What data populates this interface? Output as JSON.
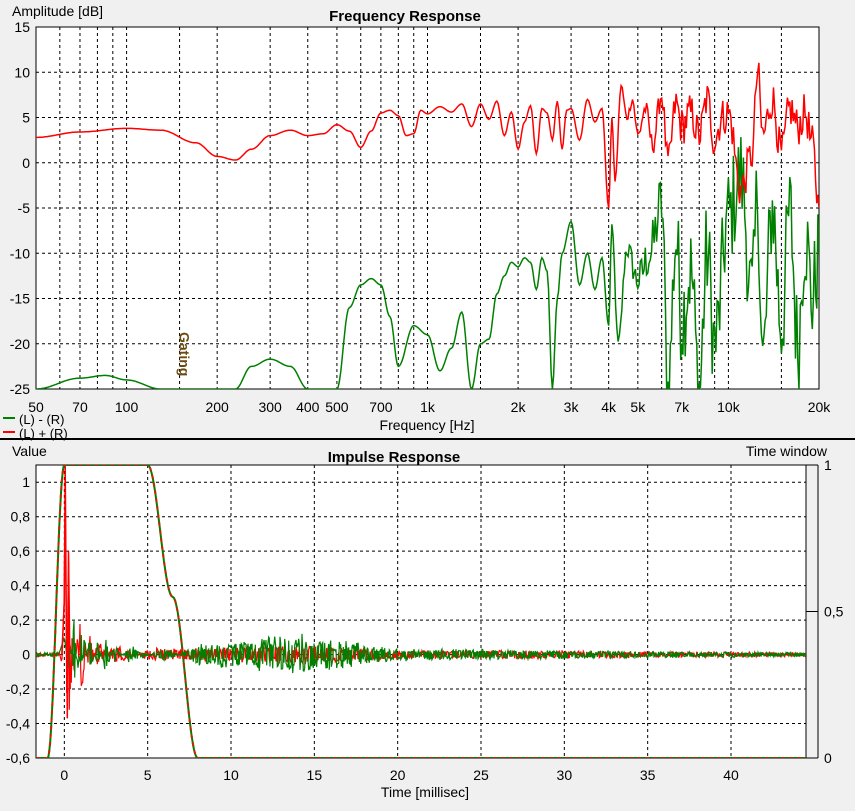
{
  "chart_data": [
    {
      "type": "line",
      "title": "Frequency Response",
      "ylabel": "Amplitude [dB]",
      "xlabel": "Frequency [Hz]",
      "xscale": "log",
      "xlim": [
        50,
        20000
      ],
      "ylim": [
        -25,
        15
      ],
      "grid": true,
      "yticks": [
        15,
        10,
        5,
        0,
        -5,
        -10,
        -15,
        -20,
        -25
      ],
      "xticks": [
        {
          "v": 50,
          "label": "50"
        },
        {
          "v": 70,
          "label": "70"
        },
        {
          "v": 100,
          "label": "100"
        },
        {
          "v": 200,
          "label": "200"
        },
        {
          "v": 300,
          "label": "300"
        },
        {
          "v": 400,
          "label": "400"
        },
        {
          "v": 500,
          "label": "500"
        },
        {
          "v": 700,
          "label": "700"
        },
        {
          "v": 1000,
          "label": "1k"
        },
        {
          "v": 2000,
          "label": "2k"
        },
        {
          "v": 3000,
          "label": "3k"
        },
        {
          "v": 4000,
          "label": "4k"
        },
        {
          "v": 5000,
          "label": "5k"
        },
        {
          "v": 7000,
          "label": "7k"
        },
        {
          "v": 10000,
          "label": "10k"
        },
        {
          "v": 20000,
          "label": "20k"
        }
      ],
      "annotation": "Gating",
      "annotation_x": 150,
      "legend_position": "bottom-left",
      "series": [
        {
          "name": "(L) + (R)",
          "color": "#ff0000",
          "x": [
            50,
            70,
            100,
            130,
            170,
            200,
            230,
            260,
            300,
            350,
            400,
            450,
            500,
            550,
            600,
            650,
            700,
            750,
            800,
            850,
            900,
            950,
            1000,
            1100,
            1200,
            1300,
            1400,
            1500,
            1600,
            1700,
            1800,
            1900,
            2000,
            2100,
            2200,
            2300,
            2400,
            2500,
            2600,
            2700,
            2800,
            2900,
            3000,
            3200,
            3400,
            3600,
            3800,
            4000,
            4100,
            4200,
            4400,
            4600,
            4800,
            5000,
            5300,
            5600,
            6000,
            6300,
            6700,
            7000,
            7500,
            8000,
            8500,
            9000,
            9500,
            10000,
            11000,
            12000,
            12500,
            13000,
            14000,
            15000,
            16000,
            17000,
            18000,
            19000,
            20000
          ],
          "y": [
            2.8,
            3.4,
            3.8,
            3.6,
            2.2,
            0.7,
            0.3,
            1.5,
            3.0,
            3.6,
            3.0,
            3.2,
            4.2,
            3.5,
            1.7,
            3.5,
            5.5,
            5.8,
            5.2,
            3.0,
            3.2,
            5.8,
            5.4,
            6.2,
            5.6,
            6.5,
            4.0,
            6.5,
            4.8,
            6.8,
            3.0,
            5.6,
            1.5,
            4.5,
            6.3,
            1.0,
            6.0,
            5.5,
            2.5,
            6.8,
            1.5,
            5.8,
            6.0,
            2.5,
            7.0,
            4.5,
            6.0,
            -5.0,
            5.0,
            -2.0,
            8.5,
            5.0,
            7.0,
            3.0,
            6.0,
            2.0,
            7.5,
            0.0,
            6.5,
            4.0,
            5.5,
            3.0,
            7.0,
            2.5,
            5.0,
            5.5,
            -3.0,
            1.0,
            10.0,
            3.0,
            7.0,
            1.0,
            6.0,
            4.0,
            5.5,
            2.0,
            -5.0
          ]
        },
        {
          "name": "(L) - (R)",
          "color": "#008000",
          "x": [
            50,
            70,
            85,
            100,
            130,
            170,
            230,
            260,
            300,
            350,
            400,
            500,
            550,
            600,
            650,
            700,
            750,
            800,
            900,
            1000,
            1100,
            1200,
            1300,
            1400,
            1500,
            1600,
            1700,
            1800,
            1900,
            2000,
            2100,
            2200,
            2300,
            2400,
            2500,
            2600,
            2700,
            2800,
            3000,
            3200,
            3400,
            3600,
            3800,
            4000,
            4100,
            4300,
            4600,
            5000,
            5500,
            6000,
            6300,
            6700,
            7000,
            7500,
            8000,
            8500,
            9000,
            10000,
            11000,
            12000,
            12500,
            13000,
            14000,
            15000,
            16000,
            17000,
            18000,
            19000,
            20000
          ],
          "y": [
            -25.0,
            -23.8,
            -23.5,
            -24.0,
            -25.0,
            -25.0,
            -25.0,
            -22.5,
            -21.7,
            -22.5,
            -25.0,
            -25.0,
            -16.0,
            -13.5,
            -12.8,
            -13.5,
            -17.0,
            -22.5,
            -18.0,
            -19.0,
            -23.0,
            -20.5,
            -16.5,
            -25.0,
            -20.0,
            -19.5,
            -14.5,
            -12.5,
            -11.0,
            -11.5,
            -10.5,
            -11.0,
            -14.0,
            -10.5,
            -12.0,
            -25.0,
            -15.0,
            -10.0,
            -6.5,
            -13.5,
            -10.0,
            -14.0,
            -10.5,
            -18.0,
            -7.0,
            -20.0,
            -9.5,
            -13.0,
            -10.0,
            -4.5,
            -25.0,
            -8.5,
            -17.0,
            -12.0,
            -25.0,
            -10.0,
            -20.0,
            -6.0,
            -1.5,
            -15.0,
            -3.5,
            -22.0,
            -5.0,
            -18.0,
            -5.5,
            -20.0,
            -8.0,
            -15.0,
            -10.0
          ]
        }
      ]
    },
    {
      "type": "line",
      "title": "Impulse Response",
      "ylabel": "Value",
      "ylabel_right": "Time window",
      "xlabel": "Time [millisec]",
      "xlim": [
        -1.7,
        44.5
      ],
      "ylim": [
        -0.6,
        1.1
      ],
      "grid": true,
      "xticks": [
        0,
        5,
        10,
        15,
        20,
        25,
        30,
        35,
        40
      ],
      "yticks": [
        {
          "v": 1,
          "label": "1"
        },
        {
          "v": 0.8,
          "label": "0,8"
        },
        {
          "v": 0.6,
          "label": "0,6"
        },
        {
          "v": 0.4,
          "label": "0,4"
        },
        {
          "v": 0.2,
          "label": "0,2"
        },
        {
          "v": 0,
          "label": "0"
        },
        {
          "v": -0.2,
          "label": "-0,2"
        },
        {
          "v": -0.4,
          "label": "-0,4"
        },
        {
          "v": -0.6,
          "label": "-0,6"
        }
      ],
      "y2lim": [
        0,
        1
      ],
      "y2ticks": [
        {
          "v": 0,
          "label": "0"
        },
        {
          "v": 0.5,
          "label": "0,5"
        },
        {
          "v": 1,
          "label": "1"
        }
      ],
      "window": {
        "name": "Time window",
        "colors": [
          "#008000",
          "#cc2200"
        ],
        "x": [
          -1.7,
          -1.0,
          0.0,
          5.0,
          6.5,
          8.0,
          44.5
        ],
        "y": [
          0,
          0,
          1,
          1,
          0.55,
          0,
          0
        ]
      },
      "series": [
        {
          "name": "(L) + (R)",
          "color": "#ff0000",
          "x": [
            -1.7,
            -0.3,
            -0.15,
            0.0,
            0.05,
            0.15,
            0.25,
            0.4,
            0.6,
            0.8,
            1.0,
            1.5,
            2.0,
            3.0,
            5.0,
            8.0,
            14.0,
            20.0,
            30.0,
            44.5
          ],
          "y": [
            0,
            0.01,
            -0.05,
            0.35,
            1.1,
            -0.37,
            0.6,
            -0.3,
            0.15,
            -0.15,
            0.28,
            -0.12,
            0.08,
            -0.06,
            0.03,
            0.03,
            0.05,
            0.02,
            0.02,
            0.01
          ]
        },
        {
          "name": "(L) - (R)",
          "color": "#008000",
          "x": [
            -1.7,
            -0.3,
            0.0,
            0.3,
            0.6,
            0.8,
            1.0,
            1.2,
            1.5,
            2.0,
            2.5,
            3.0,
            4.0,
            6.0,
            8.0,
            14.0,
            20.0,
            30.0,
            44.5
          ],
          "y": [
            0,
            0.01,
            0.1,
            -0.1,
            0.18,
            -0.12,
            0.15,
            -0.1,
            0.12,
            -0.08,
            0.1,
            -0.05,
            0.05,
            -0.04,
            0.05,
            0.1,
            0.03,
            0.02,
            0.01
          ]
        }
      ]
    }
  ]
}
